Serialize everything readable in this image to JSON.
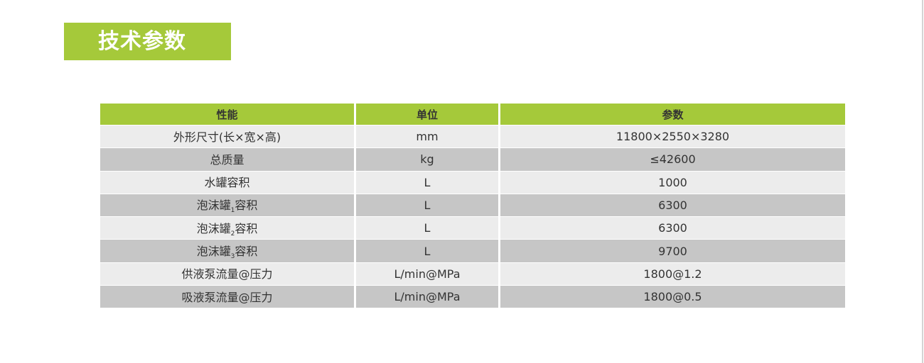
{
  "title": "技术参数",
  "colors": {
    "accent": "#a5c93a",
    "row_light": "#ececec",
    "row_dark": "#c6c6c6"
  },
  "table": {
    "headers": [
      "性能",
      "单位",
      "参数"
    ],
    "rows": [
      {
        "name": "外形尺寸(长×宽×高)",
        "sub": "",
        "suffix": "",
        "unit": "mm",
        "value": "11800×2550×3280"
      },
      {
        "name": "总质量",
        "sub": "",
        "suffix": "",
        "unit": "kg",
        "value": "≤42600"
      },
      {
        "name": "水罐容积",
        "sub": "",
        "suffix": "",
        "unit": "L",
        "value": "1000"
      },
      {
        "name": "泡沫罐",
        "sub": "1",
        "suffix": "容积",
        "unit": "L",
        "value": "6300"
      },
      {
        "name": "泡沫罐",
        "sub": "2",
        "suffix": "容积",
        "unit": "L",
        "value": "6300"
      },
      {
        "name": "泡沫罐",
        "sub": "3",
        "suffix": "容积",
        "unit": "L",
        "value": "9700"
      },
      {
        "name": "供液泵流量@压力",
        "sub": "",
        "suffix": "",
        "unit": "L/min@MPa",
        "value": "1800@1.2"
      },
      {
        "name": "吸液泵流量@压力",
        "sub": "",
        "suffix": "",
        "unit": "L/min@MPa",
        "value": "1800@0.5"
      }
    ]
  }
}
